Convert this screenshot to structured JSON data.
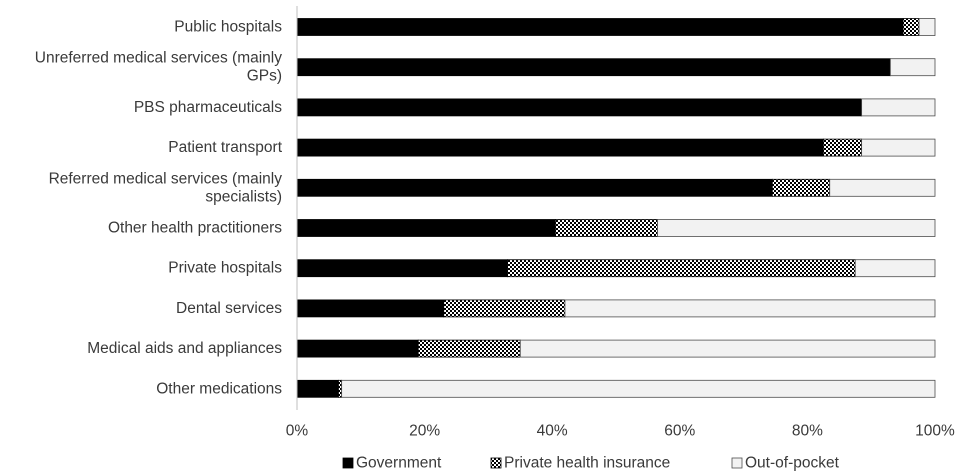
{
  "chart_data": {
    "type": "bar",
    "orientation": "horizontal",
    "stacked": true,
    "categories": [
      [
        "Public hospitals"
      ],
      [
        "Unreferred medical services (mainly",
        "GPs)"
      ],
      [
        "PBS pharmaceuticals"
      ],
      [
        "Patient transport"
      ],
      [
        "Referred medical services (mainly",
        "specialists)"
      ],
      [
        "Other health practitioners"
      ],
      [
        "Private hospitals"
      ],
      [
        "Dental services"
      ],
      [
        "Medical aids and appliances"
      ],
      [
        "Other medications"
      ]
    ],
    "series": [
      {
        "name": "Government",
        "pattern": "solid",
        "color": "#000000",
        "values": [
          95,
          93,
          88.5,
          82.5,
          74.5,
          40.5,
          33,
          23,
          19,
          6.5
        ]
      },
      {
        "name": "Private health insurance",
        "pattern": "crosshatch",
        "color": "#000000",
        "values": [
          2.5,
          0,
          0,
          6,
          9,
          16,
          54.5,
          19,
          16,
          0.5
        ]
      },
      {
        "name": "Out-of-pocket",
        "pattern": "light",
        "color": "#f2f2f2",
        "values": [
          2.5,
          7,
          11.5,
          11.5,
          16.5,
          43.5,
          12.5,
          58,
          65,
          93
        ]
      }
    ],
    "xlim": [
      0,
      100
    ],
    "xticks": [
      "0%",
      "20%",
      "40%",
      "60%",
      "80%",
      "100%"
    ],
    "legend_position": "bottom",
    "grid": false
  }
}
